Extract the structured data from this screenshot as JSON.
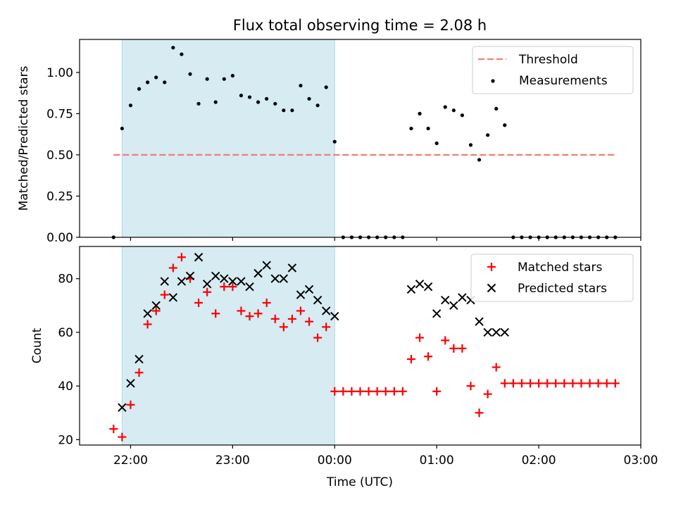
{
  "chart_data": [
    {
      "type": "scatter",
      "title": "Flux total observing time = 2.08 h",
      "xlabel": "",
      "ylabel": "Matched/Predicted stars",
      "xlim": [
        "21:30",
        "03:00"
      ],
      "ylim": [
        0,
        1.2
      ],
      "y_ticks": [
        "0.00",
        "0.25",
        "0.50",
        "0.75",
        "1.00"
      ],
      "grid": false,
      "legend_position": "top-right",
      "shaded_interval": [
        "21:55",
        "00:00"
      ],
      "threshold": {
        "name": "Threshold",
        "y": 0.5,
        "x_range": [
          "21:50",
          "02:45"
        ],
        "color": "#f08080"
      },
      "series": [
        {
          "name": "Measurements",
          "marker": "dot",
          "color": "#000000",
          "points": [
            [
              "21:50",
              0.0
            ],
            [
              "21:55",
              0.66
            ],
            [
              "22:00",
              0.8
            ],
            [
              "22:05",
              0.9
            ],
            [
              "22:10",
              0.94
            ],
            [
              "22:15",
              0.97
            ],
            [
              "22:20",
              0.94
            ],
            [
              "22:25",
              1.15
            ],
            [
              "22:30",
              1.11
            ],
            [
              "22:35",
              0.99
            ],
            [
              "22:40",
              0.81
            ],
            [
              "22:45",
              0.96
            ],
            [
              "22:50",
              0.82
            ],
            [
              "22:55",
              0.96
            ],
            [
              "23:00",
              0.98
            ],
            [
              "23:05",
              0.86
            ],
            [
              "23:10",
              0.85
            ],
            [
              "23:15",
              0.82
            ],
            [
              "23:20",
              0.84
            ],
            [
              "23:25",
              0.81
            ],
            [
              "23:30",
              0.77
            ],
            [
              "23:35",
              0.77
            ],
            [
              "23:40",
              0.92
            ],
            [
              "23:45",
              0.84
            ],
            [
              "23:50",
              0.8
            ],
            [
              "23:55",
              0.91
            ],
            [
              "00:00",
              0.58
            ],
            [
              "00:05",
              0.0
            ],
            [
              "00:10",
              0.0
            ],
            [
              "00:15",
              0.0
            ],
            [
              "00:20",
              0.0
            ],
            [
              "00:25",
              0.0
            ],
            [
              "00:30",
              0.0
            ],
            [
              "00:35",
              0.0
            ],
            [
              "00:40",
              0.0
            ],
            [
              "00:45",
              0.66
            ],
            [
              "00:50",
              0.75
            ],
            [
              "00:55",
              0.66
            ],
            [
              "01:00",
              0.57
            ],
            [
              "01:05",
              0.79
            ],
            [
              "01:10",
              0.77
            ],
            [
              "01:15",
              0.74
            ],
            [
              "01:20",
              0.56
            ],
            [
              "01:25",
              0.47
            ],
            [
              "01:30",
              0.62
            ],
            [
              "01:35",
              0.78
            ],
            [
              "01:40",
              0.68
            ],
            [
              "01:45",
              0.0
            ],
            [
              "01:50",
              0.0
            ],
            [
              "01:55",
              0.0
            ],
            [
              "02:00",
              0.0
            ],
            [
              "02:05",
              0.0
            ],
            [
              "02:10",
              0.0
            ],
            [
              "02:15",
              0.0
            ],
            [
              "02:20",
              0.0
            ],
            [
              "02:25",
              0.0
            ],
            [
              "02:30",
              0.0
            ],
            [
              "02:35",
              0.0
            ],
            [
              "02:40",
              0.0
            ],
            [
              "02:45",
              0.0
            ]
          ]
        }
      ]
    },
    {
      "type": "scatter",
      "title": "",
      "xlabel": "Time (UTC)",
      "ylabel": "Count",
      "xlim": [
        "21:30",
        "03:00"
      ],
      "ylim": [
        18,
        92
      ],
      "x_ticks": [
        "22:00",
        "23:00",
        "00:00",
        "01:00",
        "02:00",
        "03:00"
      ],
      "y_ticks": [
        "20",
        "40",
        "60",
        "80"
      ],
      "grid": false,
      "legend_position": "top-right",
      "shaded_interval": [
        "21:55",
        "00:00"
      ],
      "series": [
        {
          "name": "Matched stars",
          "marker": "plus",
          "color": "#ff0000",
          "points": [
            [
              "21:50",
              24
            ],
            [
              "21:55",
              21
            ],
            [
              "22:00",
              33
            ],
            [
              "22:05",
              45
            ],
            [
              "22:10",
              63
            ],
            [
              "22:15",
              68
            ],
            [
              "22:20",
              74
            ],
            [
              "22:25",
              84
            ],
            [
              "22:30",
              88
            ],
            [
              "22:35",
              80
            ],
            [
              "22:40",
              71
            ],
            [
              "22:45",
              75
            ],
            [
              "22:50",
              67
            ],
            [
              "22:55",
              77
            ],
            [
              "23:00",
              77
            ],
            [
              "23:05",
              68
            ],
            [
              "23:10",
              66
            ],
            [
              "23:15",
              67
            ],
            [
              "23:20",
              71
            ],
            [
              "23:25",
              65
            ],
            [
              "23:30",
              62
            ],
            [
              "23:35",
              65
            ],
            [
              "23:40",
              68
            ],
            [
              "23:45",
              64
            ],
            [
              "23:50",
              58
            ],
            [
              "23:55",
              62
            ],
            [
              "00:00",
              38
            ],
            [
              "00:05",
              38
            ],
            [
              "00:10",
              38
            ],
            [
              "00:15",
              38
            ],
            [
              "00:20",
              38
            ],
            [
              "00:25",
              38
            ],
            [
              "00:30",
              38
            ],
            [
              "00:35",
              38
            ],
            [
              "00:40",
              38
            ],
            [
              "00:45",
              50
            ],
            [
              "00:50",
              58
            ],
            [
              "00:55",
              51
            ],
            [
              "01:00",
              38
            ],
            [
              "01:05",
              57
            ],
            [
              "01:10",
              54
            ],
            [
              "01:15",
              54
            ],
            [
              "01:20",
              40
            ],
            [
              "01:25",
              30
            ],
            [
              "01:30",
              37
            ],
            [
              "01:35",
              47
            ],
            [
              "01:40",
              41
            ],
            [
              "01:45",
              41
            ],
            [
              "01:50",
              41
            ],
            [
              "01:55",
              41
            ],
            [
              "02:00",
              41
            ],
            [
              "02:05",
              41
            ],
            [
              "02:10",
              41
            ],
            [
              "02:15",
              41
            ],
            [
              "02:20",
              41
            ],
            [
              "02:25",
              41
            ],
            [
              "02:30",
              41
            ],
            [
              "02:35",
              41
            ],
            [
              "02:40",
              41
            ],
            [
              "02:45",
              41
            ]
          ]
        },
        {
          "name": "Predicted stars",
          "marker": "x",
          "color": "#000000",
          "points": [
            [
              "21:55",
              32
            ],
            [
              "22:00",
              41
            ],
            [
              "22:05",
              50
            ],
            [
              "22:10",
              67
            ],
            [
              "22:15",
              70
            ],
            [
              "22:20",
              79
            ],
            [
              "22:25",
              73
            ],
            [
              "22:30",
              79
            ],
            [
              "22:35",
              81
            ],
            [
              "22:40",
              88
            ],
            [
              "22:45",
              78
            ],
            [
              "22:50",
              81
            ],
            [
              "22:55",
              80
            ],
            [
              "23:00",
              79
            ],
            [
              "23:05",
              79
            ],
            [
              "23:10",
              77
            ],
            [
              "23:15",
              82
            ],
            [
              "23:20",
              85
            ],
            [
              "23:25",
              80
            ],
            [
              "23:30",
              80
            ],
            [
              "23:35",
              84
            ],
            [
              "23:40",
              74
            ],
            [
              "23:45",
              76
            ],
            [
              "23:50",
              72
            ],
            [
              "23:55",
              68
            ],
            [
              "00:00",
              66
            ],
            [
              "00:45",
              76
            ],
            [
              "00:50",
              78
            ],
            [
              "00:55",
              77
            ],
            [
              "01:00",
              67
            ],
            [
              "01:05",
              72
            ],
            [
              "01:10",
              70
            ],
            [
              "01:15",
              73
            ],
            [
              "01:20",
              72
            ],
            [
              "01:25",
              64
            ],
            [
              "01:30",
              60
            ],
            [
              "01:35",
              60
            ],
            [
              "01:40",
              60
            ]
          ]
        }
      ]
    }
  ]
}
